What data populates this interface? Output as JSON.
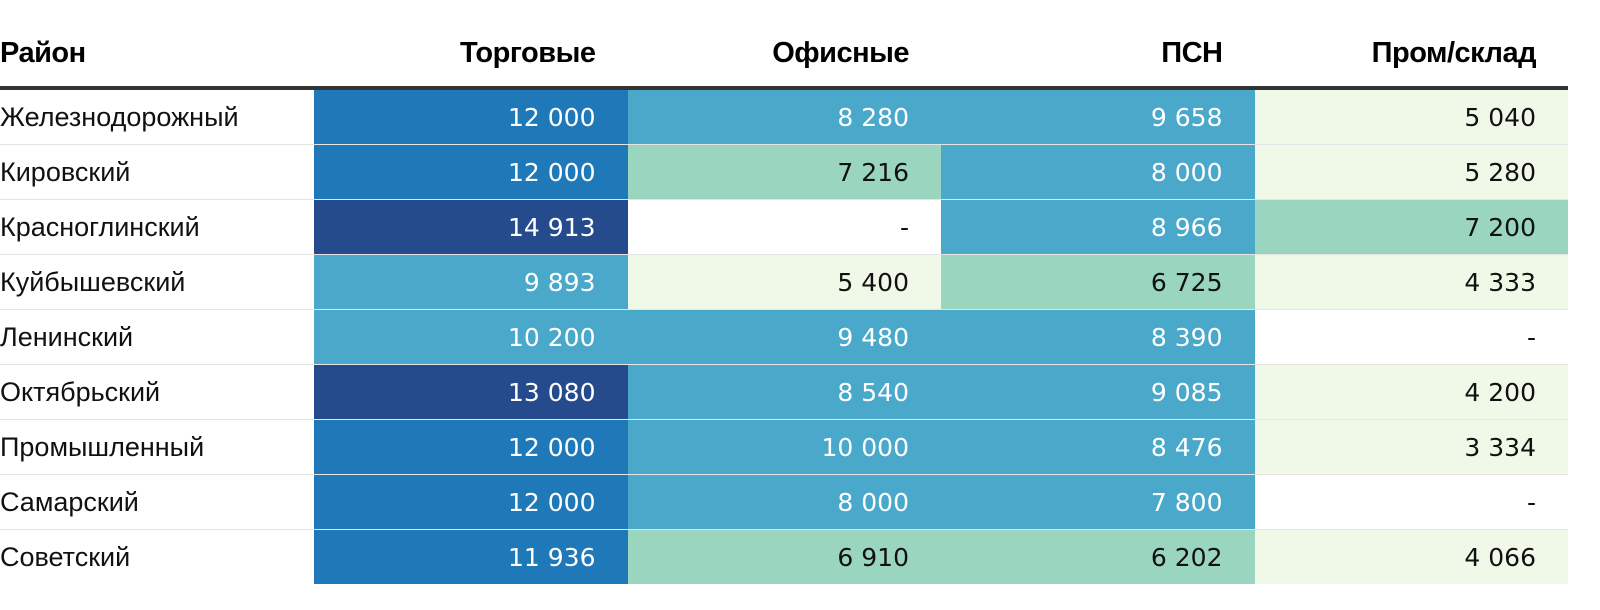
{
  "chart_data": {
    "type": "table",
    "columns": [
      "Район",
      "Торговые",
      "Офисные",
      "ПСН",
      "Пром/склад"
    ],
    "rows": [
      {
        "name": "Железнодорожный",
        "values": [
          "12 000",
          "8 280",
          "9 658",
          "5 040"
        ]
      },
      {
        "name": "Кировский",
        "values": [
          "12 000",
          "7 216",
          "8 000",
          "5 280"
        ]
      },
      {
        "name": "Красноглинский",
        "values": [
          "14 913",
          "-",
          "8 966",
          "7 200"
        ]
      },
      {
        "name": "Куйбышевский",
        "values": [
          "9 893",
          "5 400",
          "6 725",
          "4 333"
        ]
      },
      {
        "name": "Ленинский",
        "values": [
          "10 200",
          "9 480",
          "8 390",
          "-"
        ]
      },
      {
        "name": "Октябрьский",
        "values": [
          "13 080",
          "8 540",
          "9 085",
          "4 200"
        ]
      },
      {
        "name": "Промышленный",
        "values": [
          "12 000",
          "10 000",
          "8 476",
          "3 334"
        ]
      },
      {
        "name": "Самарский",
        "values": [
          "12 000",
          "8 000",
          "7 800",
          "-"
        ]
      },
      {
        "name": "Советский",
        "values": [
          "11 936",
          "6 910",
          "6 202",
          "4 066"
        ]
      }
    ],
    "color_scale": {
      "empty": "#ffffff",
      "very_light": "#f0f9e8",
      "light": "#9ad5c0",
      "medium": "#4aa8cb",
      "strong": "#1f78b8",
      "darkest": "#254b8c"
    }
  }
}
